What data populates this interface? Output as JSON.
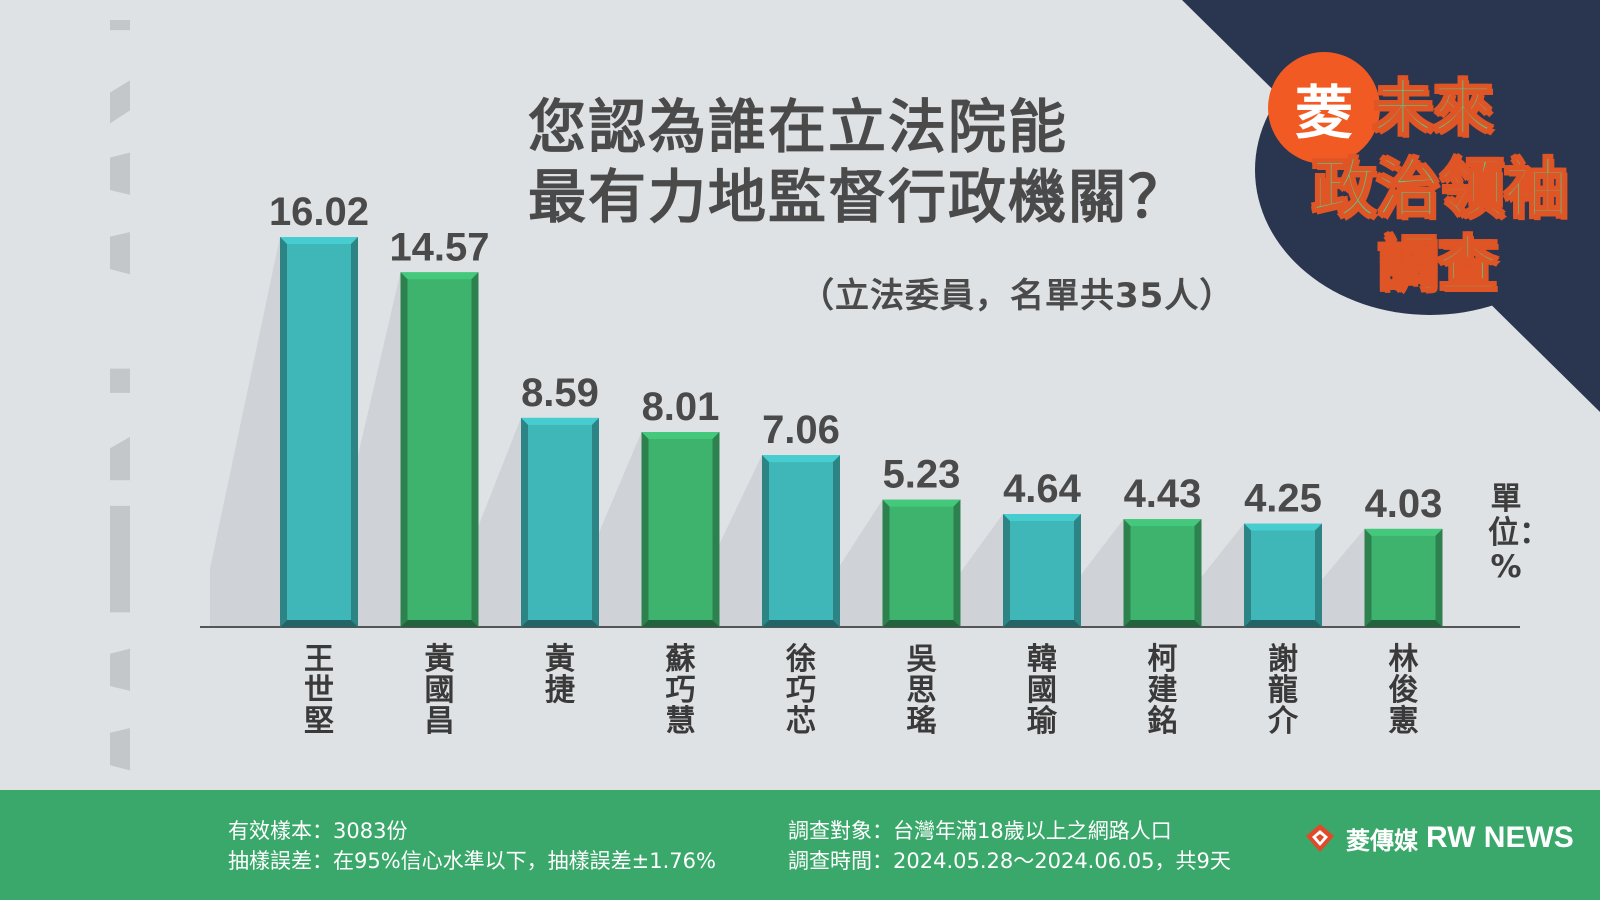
{
  "title_lines": [
    "您認為誰在立法院能",
    "最有力地監督行政機關？"
  ],
  "subtitle": "（立法委員，名單共35人）",
  "badge": {
    "circle_char": "菱",
    "line1": "未來",
    "line2": "政治領袖",
    "line3": "調查"
  },
  "watermark_text": "RW NEWS",
  "unit_label": "單位：%",
  "chart_data": {
    "type": "bar",
    "categories": [
      "王世堅",
      "黃國昌",
      "黃捷",
      "蘇巧慧",
      "徐巧芯",
      "吳思瑤",
      "韓國瑜",
      "柯建銘",
      "謝龍介",
      "林俊憲"
    ],
    "values": [
      16.02,
      14.57,
      8.59,
      8.01,
      7.06,
      5.23,
      4.64,
      4.43,
      4.25,
      4.03
    ],
    "value_labels": [
      "16.02",
      "14.57",
      "8.59",
      "8.01",
      "7.06",
      "5.23",
      "4.64",
      "4.43",
      "4.25",
      "4.03"
    ],
    "bar_colors": [
      "#3fb7b9",
      "#3db36e",
      "#3fb7b9",
      "#3db36e",
      "#3fb7b9",
      "#3db36e",
      "#3fb7b9",
      "#3db36e",
      "#3fb7b9",
      "#3db36e"
    ],
    "ylim": [
      0,
      16.02
    ],
    "grid": false,
    "legend": "none"
  },
  "footer": {
    "sample": "有效樣本：3083份",
    "error": "抽樣誤差：在95%信心水準以下，抽樣誤差±1.76%",
    "target": "調查對象：台灣年滿18歲以上之網路人口",
    "period": "調查時間：2024.05.28～2024.06.05，共9天",
    "logo_cn": "菱傳媒",
    "logo_en": "RW NEWS"
  },
  "colors": {
    "background": "#dfe2e5",
    "corner": "#2a3650",
    "footer": "#3aa86b",
    "teal": "#3fb7b9",
    "green": "#3db36e",
    "orange": "#f25a24"
  }
}
